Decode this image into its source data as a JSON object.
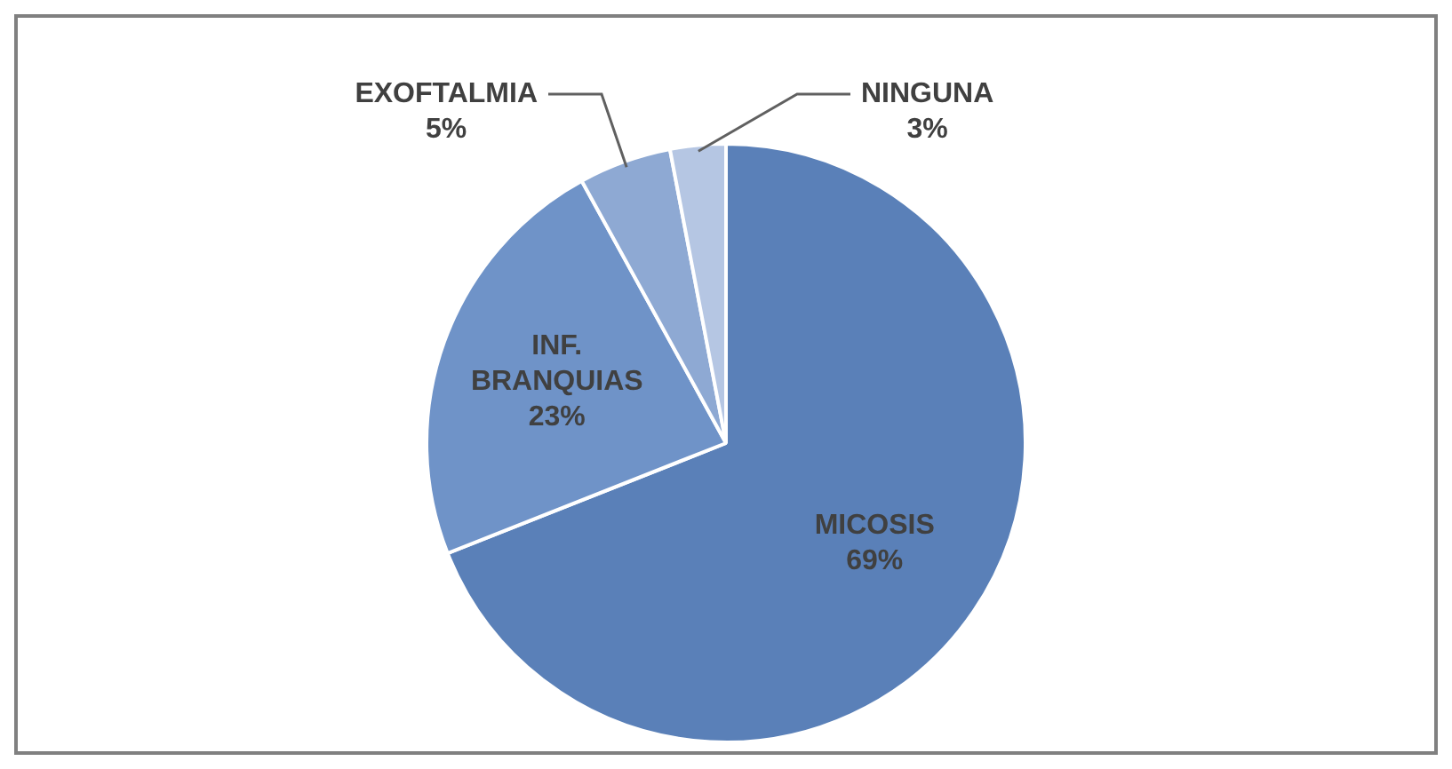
{
  "chart_data": {
    "type": "pie",
    "categories": [
      "MICOSIS",
      "INF. BRANQUIAS",
      "EXOFTALMIA",
      "NINGUNA"
    ],
    "values": [
      69,
      23,
      5,
      3
    ],
    "colors": [
      "#5a80b8",
      "#6f93c8",
      "#8ea9d3",
      "#b5c6e3"
    ],
    "value_labels": [
      "69%",
      "23%",
      "5%",
      "3%"
    ],
    "legend": false
  }
}
